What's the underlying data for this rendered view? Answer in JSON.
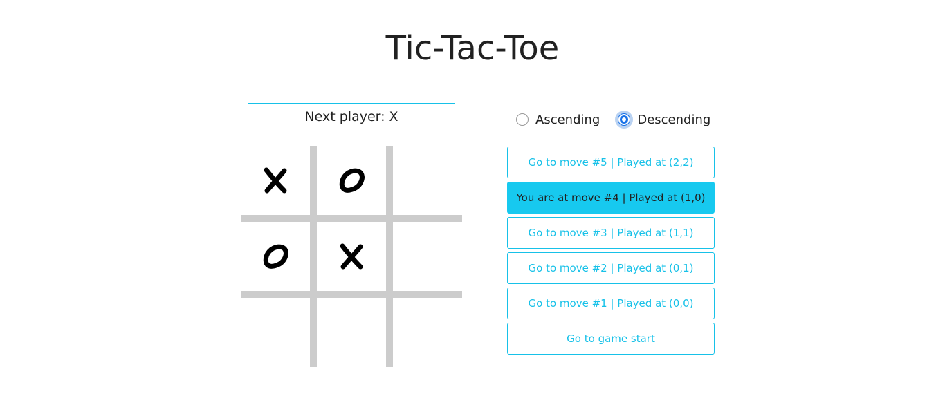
{
  "title": "Tic-Tac-Toe",
  "status": "Next player: X",
  "sort": {
    "ascending_label": "Ascending",
    "descending_label": "Descending",
    "selected": "Descending"
  },
  "board": {
    "cells": [
      "X",
      "O",
      "",
      "O",
      "X",
      "",
      "",
      "",
      ""
    ],
    "line_color": "#cccccc"
  },
  "moves": [
    {
      "label": "Go to move #5 | Played at (2,2)",
      "current": false
    },
    {
      "label": "You are at move #4 | Played at (1,0)",
      "current": true
    },
    {
      "label": "Go to move #3 | Played at (1,1)",
      "current": false
    },
    {
      "label": "Go to move #2 | Played at (0,1)",
      "current": false
    },
    {
      "label": "Go to move #1 | Played at (0,0)",
      "current": false
    },
    {
      "label": "Go to game start",
      "current": false
    }
  ],
  "colors": {
    "accent": "#17c1e8",
    "current_move_bg": "#17c9ef",
    "radio_selected": "#1a73e8"
  }
}
